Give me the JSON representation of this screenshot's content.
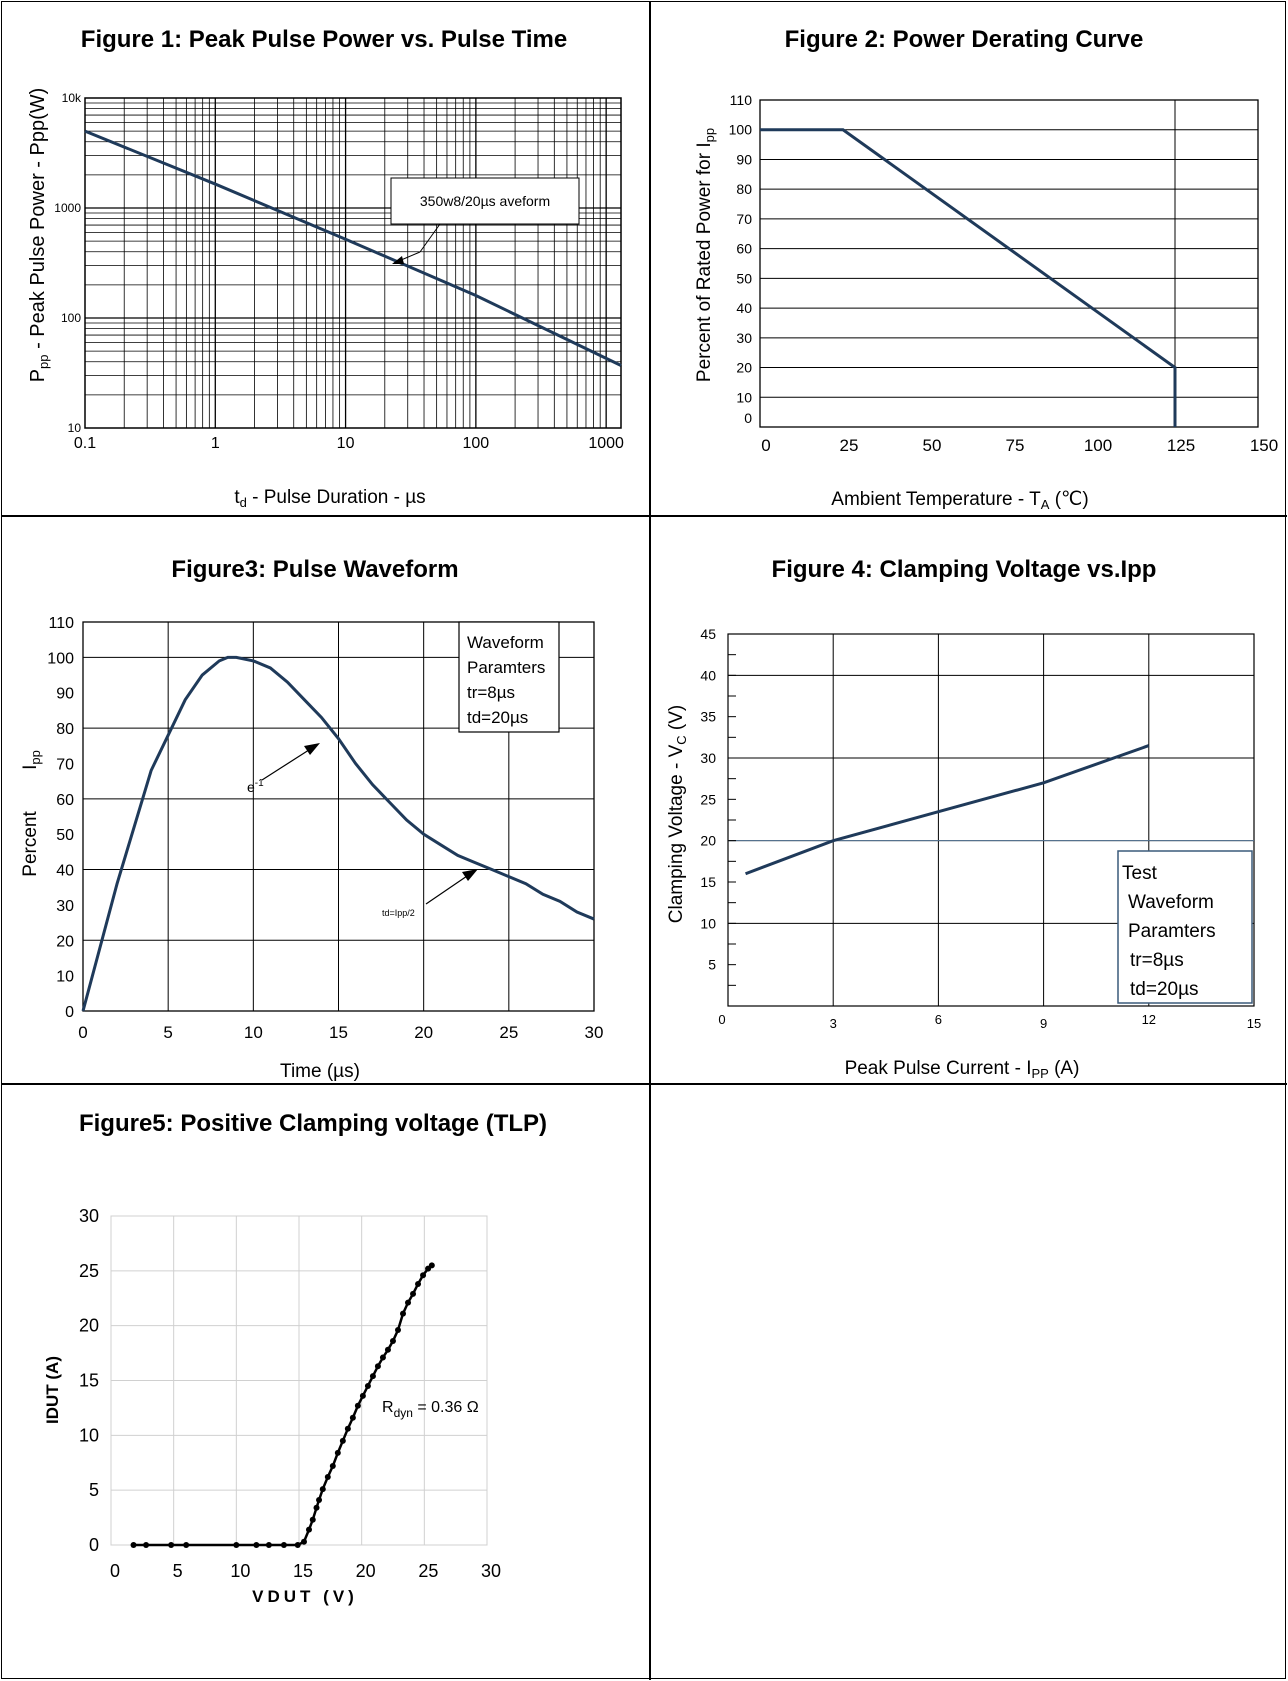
{
  "chart_data": [
    {
      "type": "line",
      "title": "Figure 1:  Peak Pulse Power vs. Pulse Time",
      "xlabel": "Pulse Duration  - µs",
      "xlabel_symbol": "t",
      "xlabel_sub": "d",
      "ylabel_symbol": "P",
      "ylabel_sub": "pp",
      "ylabel": "Peak Pulse Power - Ppp(W)",
      "xscale": "log",
      "yscale": "log",
      "xlim": [
        0.1,
        1300
      ],
      "ylim": [
        10,
        10000
      ],
      "xticks": [
        "0.1",
        "1",
        "10",
        "100",
        "1000"
      ],
      "yticks": [
        "10",
        "100",
        "1000",
        "10k"
      ],
      "grid": true,
      "series": [
        {
          "x": [
            0.1,
            1,
            10,
            100,
            1300
          ],
          "y": [
            5000,
            1650,
            520,
            160,
            37
          ]
        }
      ],
      "annotation": "350w8/20µs aveform"
    },
    {
      "type": "line",
      "title": "Figure 2:  Power Derating Curve",
      "xlabel": "Ambient Temperature - T",
      "xlabel_sub": "A",
      "xlabel_unit": "(℃)",
      "ylabel": "Percent of Rated Power for I",
      "ylabel_sub": "pp",
      "xlim": [
        0,
        150
      ],
      "ylim": [
        0,
        110
      ],
      "xticks": [
        "0",
        "25",
        "50",
        "75",
        "100",
        "125",
        "150"
      ],
      "yticks": [
        "0",
        "10",
        "20",
        "30",
        "40",
        "50",
        "60",
        "70",
        "80",
        "90",
        "100",
        "110"
      ],
      "grid": true,
      "series": [
        {
          "x": [
            0,
            25,
            125,
            125
          ],
          "y": [
            100,
            100,
            20,
            0
          ]
        }
      ]
    },
    {
      "type": "line",
      "title": "Figure3:  Pulse Waveform",
      "xlabel": "Time (µs)",
      "ylabel": "Percent",
      "ylabel2": "I",
      "ylabel2_sub": "pp",
      "xlim": [
        0,
        30
      ],
      "ylim": [
        0,
        110
      ],
      "xticks": [
        "0",
        "5",
        "10",
        "15",
        "20",
        "25",
        "30"
      ],
      "yticks": [
        "0",
        "10",
        "20",
        "30",
        "40",
        "50",
        "60",
        "70",
        "80",
        "90",
        "100",
        "110"
      ],
      "grid": true,
      "series": [
        {
          "x": [
            0,
            2,
            4,
            5,
            6,
            7,
            8,
            8.5,
            9,
            10,
            11,
            12,
            13,
            14,
            15,
            16,
            17,
            18,
            19,
            20,
            21,
            22,
            23,
            24,
            25,
            26,
            27,
            28,
            29,
            30
          ],
          "y": [
            0,
            36,
            68,
            78,
            88,
            95,
            99,
            100,
            100,
            99,
            97,
            93,
            88,
            83,
            77,
            70,
            64,
            59,
            54,
            50,
            47,
            44,
            42,
            40,
            38,
            36,
            33,
            31,
            28,
            26
          ]
        }
      ],
      "legend_lines": [
        "Waveform",
        "Paramters",
        "tr=8µs",
        "td=20µs"
      ],
      "annotations": {
        "e1": "e",
        "e1_sup": "-1",
        "td": "td=Ipp/2"
      }
    },
    {
      "type": "line",
      "title": "Figure 4:  Clamping Voltage vs.Ipp",
      "xlabel": "Peak Pulse Current - I",
      "xlabel_sub": "PP",
      "xlabel_unit": "(A)",
      "ylabel": "Clamping Voltage - V",
      "ylabel_sub": "C",
      "ylabel_unit": "(V)",
      "xlim": [
        0,
        15
      ],
      "ylim": [
        0,
        45
      ],
      "xticks": [
        "0",
        "3",
        "6",
        "9",
        "12",
        "15"
      ],
      "yticks": [
        "5",
        "10",
        "15",
        "20",
        "25",
        "30",
        "35",
        "40",
        "45"
      ],
      "grid": true,
      "series": [
        {
          "x": [
            0.5,
            3,
            6,
            9,
            12
          ],
          "y": [
            16,
            20,
            23.5,
            27,
            31.5
          ]
        }
      ],
      "legend_lines": [
        "Test",
        "Waveform",
        "Paramters",
        "tr=8µs",
        "td=20µs"
      ]
    },
    {
      "type": "scatter",
      "title": "Figure5:  Positive Clamping voltage (TLP)",
      "xlabel": "VDUT  (V)",
      "ylabel": "IDUT (A)",
      "xlim": [
        0,
        30
      ],
      "ylim": [
        0,
        30
      ],
      "xticks": [
        "0",
        "5",
        "10",
        "15",
        "20",
        "25",
        "30"
      ],
      "yticks": [
        "0",
        "5",
        "10",
        "15",
        "20",
        "25",
        "30"
      ],
      "grid": true,
      "series": [
        {
          "x": [
            1,
            2,
            4,
            5.2,
            9.2,
            10.8,
            11.8,
            13,
            14.1,
            14.6,
            15,
            15.3,
            15.6,
            15.8,
            16.1,
            16.5,
            16.9,
            17.3,
            17.7,
            18.1,
            18.5,
            18.9,
            19.3,
            19.7,
            20.1,
            20.5,
            20.9,
            21.3,
            21.7,
            22.1,
            22.5,
            22.9,
            23.3,
            23.7,
            24.1,
            24.5,
            24.8
          ],
          "y": [
            0,
            0,
            0,
            0,
            0,
            0,
            0,
            0,
            0,
            0.3,
            1.4,
            2.3,
            3.4,
            4.1,
            5.1,
            6.2,
            7.2,
            8.4,
            9.5,
            10.6,
            11.6,
            12.7,
            13.6,
            14.5,
            15.4,
            16.3,
            17.1,
            17.8,
            18.6,
            19.6,
            21.1,
            22.1,
            22.9,
            23.8,
            24.6,
            25.2,
            25.5
          ]
        }
      ],
      "annotation": "R",
      "annotation_sub": "dyn",
      "annotation_rest": " = 0.36 Ω"
    }
  ]
}
